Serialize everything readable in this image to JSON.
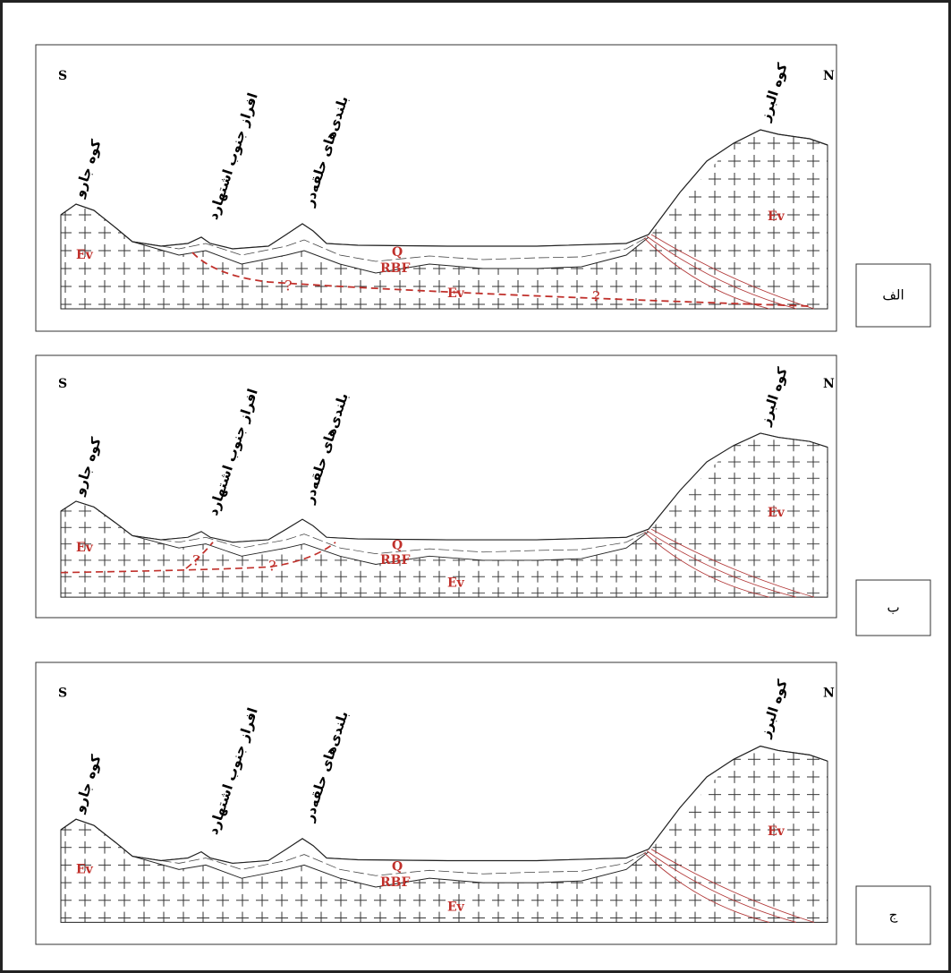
{
  "panels": [
    {
      "label": "الف",
      "south": "S",
      "north": "N",
      "places": [
        "کوه جارو",
        "افراز جنوب اشتهارد",
        "بلندی‌های حلقه‌در",
        "کوه البرز"
      ],
      "units": [
        "Ev",
        "Q",
        "RBF",
        "Ev",
        "Ev"
      ],
      "question_marks": [
        "?",
        "?"
      ]
    },
    {
      "label": "ب",
      "south": "S",
      "north": "N",
      "places": [
        "کوه جارو",
        "افراز جنوب اشتهارد",
        "بلندی‌های حلقه‌در",
        "کوه البرز"
      ],
      "units": [
        "Ev",
        "Q",
        "RBF",
        "Ev",
        "Ev"
      ],
      "question_marks": [
        "?",
        "?"
      ]
    },
    {
      "label": "ج",
      "south": "S",
      "north": "N",
      "places": [
        "کوه جارو",
        "افراز جنوب اشتهارد",
        "بلندی‌های حلقه‌در",
        "کوه البرز"
      ],
      "units": [
        "Ev",
        "Q",
        "RBF",
        "Ev",
        "Ev"
      ],
      "question_marks": []
    }
  ]
}
